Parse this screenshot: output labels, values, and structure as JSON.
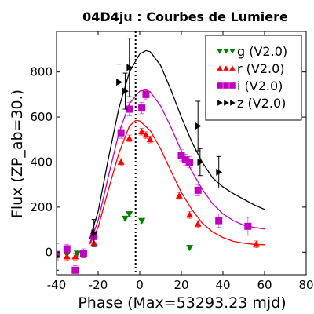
{
  "chart_data": {
    "type": "scatter",
    "title": "04D4ju : Courbes de Lumiere",
    "xlabel": "Phase (Max=53293.23 mjd)",
    "ylabel": "Flux (ZP_ab=30.)",
    "xlim": [
      -40,
      80
    ],
    "ylim": [
      -100,
      980
    ],
    "xticks": [
      "-40",
      "-20",
      "0",
      "20",
      "40",
      "60",
      "80"
    ],
    "yticks": [
      "0",
      "200",
      "400",
      "600",
      "800"
    ],
    "xtick_values": [
      -40,
      -20,
      0,
      20,
      40,
      60,
      80
    ],
    "ytick_values": [
      0,
      200,
      400,
      600,
      800
    ],
    "max_phase": -2,
    "legend_position": "top-right",
    "series": [
      {
        "name": "g (V2.0)",
        "color": "#008000",
        "marker": "triangle-down",
        "points": [
          {
            "x": -40,
            "y": -20,
            "err": 15
          },
          {
            "x": -35,
            "y": -10,
            "err": 15
          },
          {
            "x": -30,
            "y": -5,
            "err": 15
          },
          {
            "x": -7,
            "y": 150,
            "err": 10
          },
          {
            "x": -5,
            "y": 170,
            "err": 10
          },
          {
            "x": 1,
            "y": 140,
            "err": 10
          },
          {
            "x": 24,
            "y": 20,
            "err": 10
          }
        ],
        "model": []
      },
      {
        "name": "r (V2.0)",
        "color": "#ff0000",
        "marker": "triangle-up",
        "points": [
          {
            "x": -35,
            "y": -20,
            "err": 15
          },
          {
            "x": -31,
            "y": -20,
            "err": 15
          },
          {
            "x": -27,
            "y": -10,
            "err": 15
          },
          {
            "x": -22,
            "y": 40,
            "err": 15
          },
          {
            "x": -9,
            "y": 400,
            "err": 15
          },
          {
            "x": -5,
            "y": 505,
            "err": 15
          },
          {
            "x": 1,
            "y": 535,
            "err": 15
          },
          {
            "x": 3,
            "y": 520,
            "err": 15
          },
          {
            "x": 5,
            "y": 500,
            "err": 15
          },
          {
            "x": 19,
            "y": 250,
            "err": 15
          },
          {
            "x": 24,
            "y": 165,
            "err": 15
          },
          {
            "x": 28,
            "y": 125,
            "err": 15
          },
          {
            "x": 56,
            "y": 35,
            "err": 15
          }
        ],
        "model": [
          [
            -24,
            35
          ],
          [
            -20,
            110
          ],
          [
            -15,
            280
          ],
          [
            -10,
            440
          ],
          [
            -5,
            560
          ],
          [
            -2,
            585
          ],
          [
            0,
            583
          ],
          [
            5,
            540
          ],
          [
            10,
            460
          ],
          [
            15,
            360
          ],
          [
            20,
            265
          ],
          [
            25,
            190
          ],
          [
            30,
            130
          ],
          [
            35,
            90
          ],
          [
            40,
            65
          ],
          [
            45,
            48
          ],
          [
            50,
            40
          ],
          [
            55,
            35
          ],
          [
            60,
            33
          ]
        ]
      },
      {
        "name": "i (V2.0)",
        "color": "#c000c0",
        "marker": "square",
        "points": [
          {
            "x": -40,
            "y": -10,
            "err": 20
          },
          {
            "x": -35,
            "y": 15,
            "err": 20
          },
          {
            "x": -31,
            "y": -80,
            "err": 20
          },
          {
            "x": -27,
            "y": -5,
            "err": 20
          },
          {
            "x": -22,
            "y": 70,
            "err": 25
          },
          {
            "x": -9,
            "y": 530,
            "err": 25
          },
          {
            "x": -5,
            "y": 635,
            "err": 30
          },
          {
            "x": 1,
            "y": 640,
            "err": 25
          },
          {
            "x": 3,
            "y": 700,
            "err": 20
          },
          {
            "x": 20,
            "y": 430,
            "err": 25
          },
          {
            "x": 22,
            "y": 410,
            "err": 25
          },
          {
            "x": 24,
            "y": 400,
            "err": 25
          },
          {
            "x": 28,
            "y": 275,
            "err": 25
          },
          {
            "x": 38,
            "y": 140,
            "err": 30
          },
          {
            "x": 52,
            "y": 115,
            "err": 40
          }
        ],
        "model": [
          [
            -24,
            40
          ],
          [
            -20,
            140
          ],
          [
            -15,
            340
          ],
          [
            -10,
            530
          ],
          [
            -5,
            660
          ],
          [
            0,
            715
          ],
          [
            3,
            720
          ],
          [
            5,
            712
          ],
          [
            10,
            650
          ],
          [
            15,
            555
          ],
          [
            20,
            450
          ],
          [
            25,
            360
          ],
          [
            30,
            280
          ],
          [
            35,
            215
          ],
          [
            40,
            170
          ],
          [
            45,
            140
          ],
          [
            50,
            120
          ],
          [
            55,
            110
          ],
          [
            60,
            103
          ]
        ]
      },
      {
        "name": "z (V2.0)",
        "color": "#000000",
        "marker": "triangle-right",
        "points": [
          {
            "x": -40,
            "y": -20,
            "err": 60
          },
          {
            "x": -22,
            "y": 85,
            "err": 60
          },
          {
            "x": -10,
            "y": 755,
            "err": 80
          },
          {
            "x": -7,
            "y": 715,
            "err": 80
          },
          {
            "x": -5,
            "y": 820,
            "err": 130
          },
          {
            "x": 28,
            "y": 560,
            "err": 110
          },
          {
            "x": 29,
            "y": 400,
            "err": 60
          },
          {
            "x": 38,
            "y": 355,
            "err": 70
          }
        ],
        "model": [
          [
            -24,
            60
          ],
          [
            -20,
            180
          ],
          [
            -15,
            420
          ],
          [
            -10,
            640
          ],
          [
            -5,
            800
          ],
          [
            0,
            880
          ],
          [
            3,
            895
          ],
          [
            5,
            890
          ],
          [
            10,
            830
          ],
          [
            15,
            720
          ],
          [
            20,
            600
          ],
          [
            25,
            490
          ],
          [
            30,
            400
          ],
          [
            35,
            330
          ],
          [
            40,
            290
          ],
          [
            45,
            260
          ],
          [
            50,
            235
          ],
          [
            55,
            210
          ],
          [
            60,
            190
          ]
        ]
      }
    ]
  }
}
